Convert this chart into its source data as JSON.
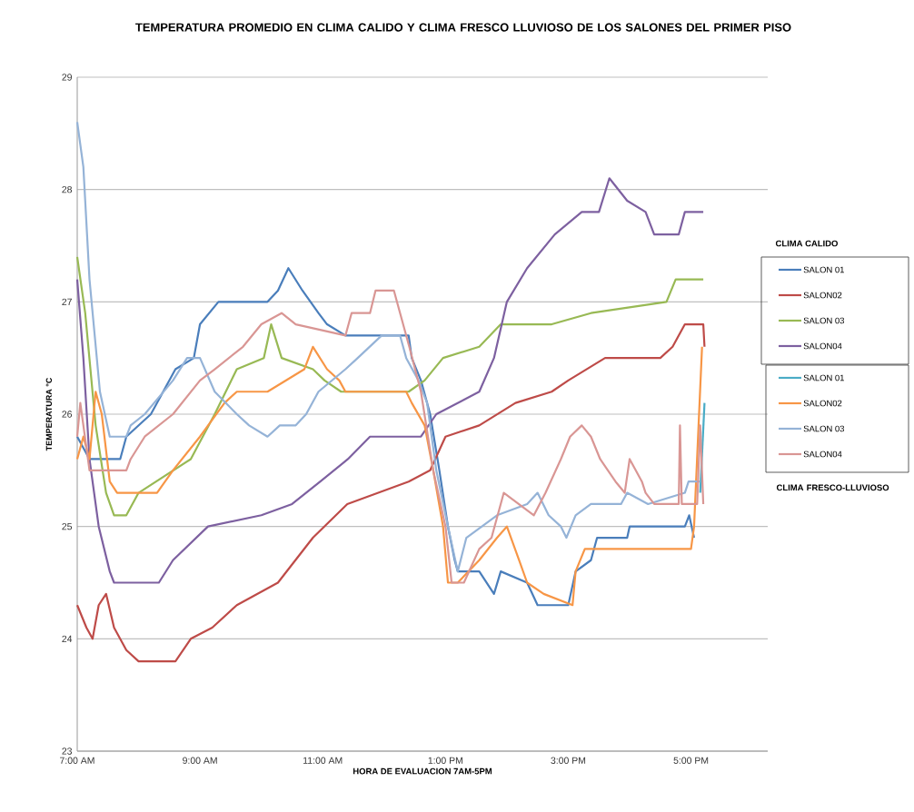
{
  "chart_data": {
    "type": "line",
    "title": "TEMPERATURA PROMEDIO EN CLIMA CALIDO Y CLIMA FRESCO LLUVIOSO DE LOS SALONES DEL PRIMER  PISO",
    "xlabel": "HORA DE EVALUACION 7AM-5PM",
    "ylabel": "TEMPERATURA  °C",
    "legend_title": "CLIMA CALIDO",
    "annotations": [
      "CLIMA FRESCO-LLUVIOSO"
    ],
    "xlim": [
      7,
      18.25
    ],
    "xticks": [
      {
        "value": 7,
        "label": "7:00 AM"
      },
      {
        "value": 9,
        "label": "9:00 AM"
      },
      {
        "value": 11,
        "label": "11:00 AM"
      },
      {
        "value": 13,
        "label": "1:00 PM"
      },
      {
        "value": 15,
        "label": "3:00 PM"
      },
      {
        "value": 17,
        "label": "5:00 PM"
      }
    ],
    "ylim": [
      23,
      29
    ],
    "yticks": [
      23,
      24,
      25,
      26,
      27,
      28,
      29
    ],
    "grid": "y",
    "legend": "right",
    "marker": "none",
    "line_style": "solid",
    "series": [
      {
        "name": "SALON 01",
        "color": "#4a7ebb",
        "x": [
          7.0,
          7.2,
          7.7,
          7.8,
          8.2,
          8.6,
          8.9,
          9.0,
          9.3,
          10.1,
          10.27,
          10.44,
          10.67,
          10.93,
          11.07,
          11.37,
          12.4,
          12.45,
          12.6,
          12.75,
          12.9,
          13.04,
          13.15,
          13.2,
          13.55,
          13.79,
          13.9,
          14.33,
          14.5,
          15.0,
          15.12,
          15.37,
          15.47,
          15.96,
          16.0,
          16.9,
          16.97,
          17.05
        ],
        "values": [
          25.8,
          25.6,
          25.6,
          25.8,
          26.0,
          26.4,
          26.5,
          26.8,
          27.0,
          27.0,
          27.1,
          27.3,
          27.1,
          26.9,
          26.8,
          26.7,
          26.7,
          26.5,
          26.3,
          26.0,
          25.5,
          25.0,
          24.7,
          24.6,
          24.6,
          24.4,
          24.6,
          24.5,
          24.3,
          24.3,
          24.6,
          24.7,
          24.9,
          24.9,
          25.0,
          25.0,
          25.1,
          24.9
        ]
      },
      {
        "name": "SALON02",
        "color": "#be4b48",
        "x": [
          7.0,
          7.15,
          7.25,
          7.35,
          7.47,
          7.6,
          7.8,
          8.0,
          8.6,
          8.85,
          9.2,
          9.6,
          10.27,
          10.84,
          11.4,
          12.4,
          12.75,
          13.0,
          13.55,
          14.14,
          14.73,
          15.0,
          15.6,
          16.5,
          16.7,
          16.9,
          17.2,
          17.22
        ],
        "values": [
          24.3,
          24.1,
          24.0,
          24.3,
          24.4,
          24.1,
          23.9,
          23.8,
          23.8,
          24.0,
          24.1,
          24.3,
          24.5,
          24.9,
          25.2,
          25.4,
          25.5,
          25.8,
          25.9,
          26.1,
          26.2,
          26.3,
          26.5,
          26.5,
          26.6,
          26.8,
          26.8,
          26.6
        ]
      },
      {
        "name": "SALON 03",
        "color": "#98b954",
        "x": [
          7.0,
          7.13,
          7.3,
          7.47,
          7.6,
          7.8,
          8.0,
          8.85,
          9.24,
          9.6,
          10.04,
          10.16,
          10.33,
          10.84,
          11.03,
          11.3,
          12.4,
          12.66,
          12.96,
          13.55,
          13.9,
          14.73,
          15.37,
          16.6,
          16.75,
          17.2
        ],
        "values": [
          27.4,
          26.9,
          25.9,
          25.3,
          25.1,
          25.1,
          25.3,
          25.6,
          26.0,
          26.4,
          26.5,
          26.8,
          26.5,
          26.4,
          26.3,
          26.2,
          26.2,
          26.3,
          26.5,
          26.6,
          26.8,
          26.8,
          26.9,
          27.0,
          27.2,
          27.2
        ]
      },
      {
        "name": "SALON04",
        "color": "#7d60a0",
        "x": [
          7.0,
          7.1,
          7.2,
          7.35,
          7.53,
          7.6,
          8.33,
          8.56,
          9.13,
          10.0,
          10.5,
          10.96,
          11.41,
          11.77,
          12.6,
          12.85,
          13.55,
          13.79,
          14.0,
          14.33,
          14.78,
          15.22,
          15.5,
          15.67,
          15.96,
          16.26,
          16.4,
          16.8,
          16.9,
          17.2
        ],
        "values": [
          27.2,
          26.5,
          25.6,
          25.0,
          24.6,
          24.5,
          24.5,
          24.7,
          25.0,
          25.1,
          25.2,
          25.4,
          25.6,
          25.8,
          25.8,
          26.0,
          26.2,
          26.5,
          27.0,
          27.3,
          27.6,
          27.8,
          27.8,
          28.1,
          27.9,
          27.8,
          27.6,
          27.6,
          27.8,
          27.8
        ]
      },
      {
        "name": "SALON 01",
        "color": "#4bacc6",
        "x": [
          17.15,
          17.22
        ],
        "values": [
          25.3,
          26.1
        ]
      },
      {
        "name": "SALON02",
        "color": "#f79646",
        "x": [
          7.0,
          7.1,
          7.2,
          7.3,
          7.4,
          7.53,
          7.65,
          8.3,
          8.56,
          9.0,
          9.4,
          9.6,
          10.1,
          10.7,
          10.84,
          11.07,
          11.27,
          11.37,
          12.36,
          12.45,
          12.66,
          12.8,
          12.96,
          13.04,
          13.2,
          13.55,
          13.84,
          14.0,
          14.2,
          14.33,
          14.6,
          15.07,
          15.12,
          15.27,
          17.0,
          17.05,
          17.18
        ],
        "values": [
          25.6,
          25.8,
          25.6,
          26.2,
          26.0,
          25.4,
          25.3,
          25.3,
          25.5,
          25.8,
          26.1,
          26.2,
          26.2,
          26.4,
          26.6,
          26.4,
          26.3,
          26.2,
          26.2,
          26.1,
          25.9,
          25.5,
          25.0,
          24.5,
          24.5,
          24.7,
          24.9,
          25.0,
          24.7,
          24.5,
          24.4,
          24.3,
          24.6,
          24.8,
          24.8,
          25.0,
          26.6
        ]
      },
      {
        "name": "SALON 03",
        "color": "#95b3d7",
        "x": [
          7.0,
          7.1,
          7.2,
          7.37,
          7.53,
          7.8,
          7.87,
          8.1,
          8.56,
          8.79,
          9.0,
          9.24,
          9.6,
          9.8,
          10.1,
          10.3,
          10.56,
          10.73,
          10.93,
          11.37,
          11.57,
          11.96,
          12.26,
          12.36,
          12.56,
          12.7,
          12.85,
          13.04,
          13.2,
          13.34,
          13.84,
          14.33,
          14.5,
          14.68,
          14.88,
          14.97,
          15.12,
          15.37,
          15.86,
          15.96,
          16.3,
          16.9,
          16.96,
          17.15
        ],
        "values": [
          28.6,
          28.2,
          27.2,
          26.2,
          25.8,
          25.8,
          25.9,
          26.0,
          26.3,
          26.5,
          26.5,
          26.2,
          26.0,
          25.9,
          25.8,
          25.9,
          25.9,
          26.0,
          26.2,
          26.4,
          26.5,
          26.7,
          26.7,
          26.5,
          26.3,
          26.1,
          25.5,
          25.0,
          24.6,
          24.9,
          25.1,
          25.2,
          25.3,
          25.1,
          25.0,
          24.9,
          25.1,
          25.2,
          25.2,
          25.3,
          25.2,
          25.3,
          25.4,
          25.4
        ]
      },
      {
        "name": "SALON04",
        "color": "#d99694",
        "x": [
          7.0,
          7.05,
          7.2,
          7.8,
          7.87,
          8.1,
          8.56,
          9.0,
          9.24,
          9.7,
          10.0,
          10.33,
          10.56,
          11.37,
          11.47,
          11.77,
          11.86,
          12.16,
          12.26,
          12.41,
          12.6,
          12.8,
          13.0,
          13.1,
          13.3,
          13.55,
          13.75,
          13.95,
          14.44,
          14.63,
          14.88,
          15.03,
          15.22,
          15.37,
          15.52,
          15.77,
          15.92,
          16.0,
          16.2,
          16.26,
          16.4,
          16.8,
          16.82,
          16.85,
          17.1,
          17.15,
          17.2
        ],
        "values": [
          25.8,
          26.1,
          25.5,
          25.5,
          25.6,
          25.8,
          26.0,
          26.3,
          26.4,
          26.6,
          26.8,
          26.9,
          26.8,
          26.7,
          26.9,
          26.9,
          27.1,
          27.1,
          26.9,
          26.6,
          26.2,
          25.5,
          25.0,
          24.5,
          24.5,
          24.8,
          24.9,
          25.3,
          25.1,
          25.3,
          25.6,
          25.8,
          25.9,
          25.8,
          25.6,
          25.4,
          25.3,
          25.6,
          25.4,
          25.3,
          25.2,
          25.2,
          25.9,
          25.2,
          25.2,
          25.9,
          25.2
        ]
      }
    ]
  }
}
